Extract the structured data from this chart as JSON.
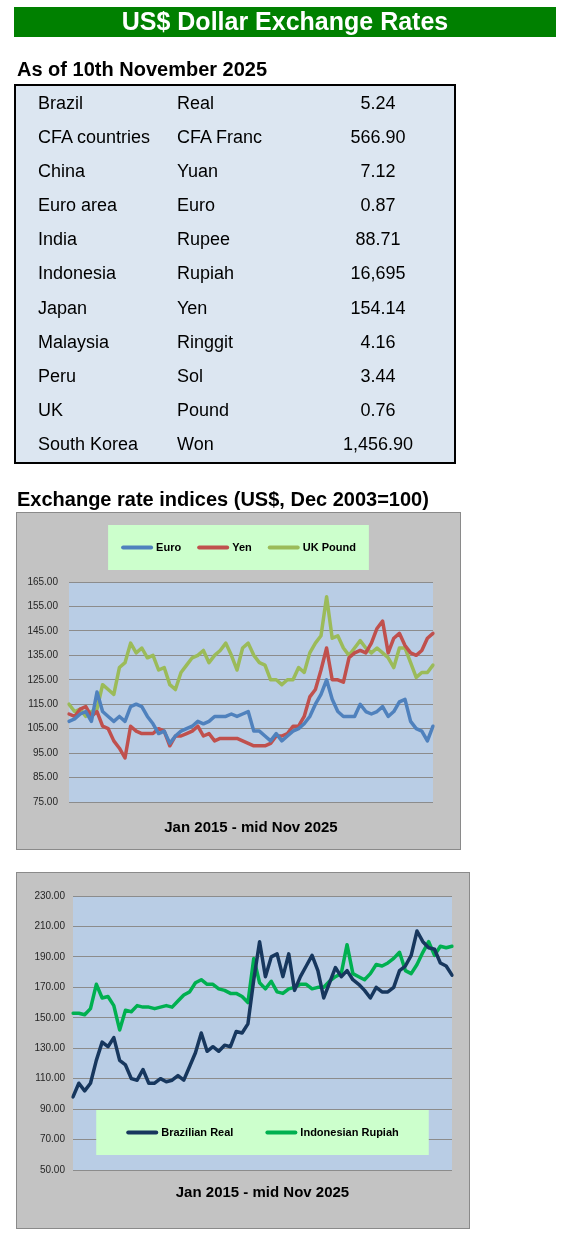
{
  "chart_data": [
    {
      "type": "other",
      "title": "US$ Dollar Exchange Rates",
      "subtitle": "As of 10th November 2025",
      "annotations": [
        "Brazil",
        "Real",
        "5.24",
        "CFA countries",
        "CFA Franc",
        "566.90",
        "China",
        "Yuan",
        "7.12",
        "Euro area",
        "Euro",
        "0.87",
        "India",
        "Rupee",
        "88.71",
        "Indonesia",
        "Rupiah",
        "16,695",
        "Japan",
        "Yen",
        "154.14",
        "Malaysia",
        "Ringgit",
        "4.16",
        "Peru",
        "Sol",
        "3.44",
        "UK",
        "Pound",
        "0.76",
        "South Korea",
        "Won",
        "1,456.90"
      ]
    },
    {
      "type": "line",
      "title": "Exchange rate indices (US$, Dec 2003=100)",
      "xlabel": "Jan 2015 - mid Nov 2025",
      "categories": [
        null,
        null,
        null,
        null,
        null,
        null,
        null,
        null,
        null,
        null,
        null,
        null,
        null,
        null,
        null,
        null,
        null,
        null,
        null,
        null,
        null,
        null,
        null,
        null,
        null,
        null,
        null,
        null,
        null,
        null,
        null,
        null,
        null,
        null,
        null,
        null,
        null,
        null,
        null,
        null,
        null,
        null,
        null,
        null,
        null,
        null,
        null,
        null,
        null,
        null,
        null,
        null,
        null,
        null,
        null,
        null,
        null,
        null,
        null,
        null,
        null,
        null,
        null,
        null,
        null,
        null
      ],
      "series": [
        {
          "name": "Euro",
          "color": "#4f81bd",
          "values": [
            108,
            109,
            111,
            112,
            108,
            120,
            112,
            110,
            108,
            110,
            108,
            114,
            115,
            114,
            110,
            107,
            103,
            104,
            99,
            102,
            104,
            105,
            106,
            108,
            107,
            108,
            110,
            110,
            110,
            111,
            110,
            111,
            112,
            104,
            104,
            102,
            100,
            103,
            100,
            102,
            104,
            105,
            107,
            110,
            115,
            119,
            125,
            117,
            112,
            110,
            110,
            110,
            115,
            112,
            111,
            112,
            114,
            110,
            112,
            116,
            117,
            108,
            105,
            104,
            100,
            106
          ]
        },
        {
          "name": "Yen",
          "color": "#c0504d",
          "values": [
            111,
            110,
            113,
            114,
            110,
            112,
            106,
            105,
            100,
            97,
            93,
            106,
            104,
            103,
            103,
            103,
            105,
            104,
            98,
            102,
            102,
            103,
            104,
            106,
            102,
            103,
            100,
            101,
            101,
            101,
            101,
            100,
            99,
            98,
            98,
            98,
            99,
            102,
            102,
            103,
            106,
            106,
            110,
            118,
            121,
            129,
            138,
            125,
            125,
            124,
            134,
            136,
            137,
            136,
            140,
            146,
            149,
            136,
            142,
            144,
            139,
            136,
            135,
            137,
            142,
            144
          ]
        },
        {
          "name": "UK Pound",
          "color": "#9bbb59",
          "values": [
            115,
            112,
            113,
            110,
            112,
            113,
            123,
            121,
            119,
            130,
            132,
            140,
            136,
            138,
            134,
            135,
            129,
            130,
            123,
            121,
            128,
            131,
            134,
            135,
            137,
            132,
            135,
            137,
            140,
            135,
            129,
            138,
            140,
            135,
            132,
            131,
            125,
            125,
            123,
            125,
            125,
            130,
            128,
            136,
            140,
            143,
            159,
            142,
            143,
            138,
            135,
            138,
            141,
            138,
            136,
            138,
            136,
            134,
            130,
            138,
            138,
            132,
            126,
            128,
            128,
            131
          ]
        }
      ],
      "ylim": [
        75,
        165
      ],
      "yticks": [
        {
          "value": 75,
          "label": "75.00"
        },
        {
          "value": 85,
          "label": "85.00"
        },
        {
          "value": 95,
          "label": "95.00"
        },
        {
          "value": 105,
          "label": "105.00"
        },
        {
          "value": 115,
          "label": "115.00"
        },
        {
          "value": 125,
          "label": "125.00"
        },
        {
          "value": 135,
          "label": "135.00"
        },
        {
          "value": 145,
          "label": "145.00"
        },
        {
          "value": 155,
          "label": "155.00"
        },
        {
          "value": 165,
          "label": "165.00"
        }
      ],
      "grid": "y",
      "legend": "top",
      "tick_labels": "y",
      "marker": "none",
      "line_style": "solid"
    },
    {
      "type": "line",
      "xlabel": "Jan 2015 - mid Nov 2025",
      "categories": [
        null,
        null,
        null,
        null,
        null,
        null,
        null,
        null,
        null,
        null,
        null,
        null,
        null,
        null,
        null,
        null,
        null,
        null,
        null,
        null,
        null,
        null,
        null,
        null,
        null,
        null,
        null,
        null,
        null,
        null,
        null,
        null,
        null,
        null,
        null,
        null,
        null,
        null,
        null,
        null,
        null,
        null,
        null,
        null,
        null,
        null,
        null,
        null,
        null,
        null,
        null,
        null,
        null,
        null,
        null,
        null,
        null,
        null,
        null,
        null,
        null,
        null,
        null,
        null,
        null,
        null
      ],
      "series": [
        {
          "name": "Brazilian Real",
          "color": "#17375e",
          "values": [
            98,
            107,
            102,
            107,
            122,
            134,
            131,
            137,
            122,
            119,
            110,
            109,
            116,
            107,
            107,
            110,
            108,
            109,
            112,
            109,
            118,
            127,
            140,
            128,
            131,
            128,
            132,
            131,
            141,
            140,
            146,
            175,
            200,
            177,
            190,
            192,
            177,
            192,
            168,
            177,
            184,
            191,
            181,
            163,
            173,
            183,
            177,
            181,
            175,
            172,
            168,
            163,
            170,
            167,
            167,
            170,
            181,
            184,
            191,
            207,
            200,
            196,
            195,
            186,
            184,
            178
          ]
        },
        {
          "name": "Indonesian Rupiah",
          "color": "#00b050",
          "values": [
            153,
            153,
            152,
            156,
            172,
            163,
            164,
            158,
            142,
            155,
            154,
            158,
            157,
            157,
            156,
            157,
            158,
            157,
            161,
            165,
            167,
            173,
            175,
            172,
            172,
            169,
            168,
            166,
            166,
            164,
            160,
            189,
            173,
            169,
            174,
            167,
            166,
            169,
            170,
            172,
            172,
            169,
            170,
            170,
            174,
            177,
            179,
            198,
            179,
            177,
            175,
            179,
            185,
            184,
            186,
            189,
            193,
            181,
            179,
            185,
            193,
            200,
            191,
            197,
            196,
            197
          ]
        }
      ],
      "ylim": [
        50,
        230
      ],
      "yticks": [
        {
          "value": 50,
          "label": "50.00"
        },
        {
          "value": 70,
          "label": "70.00"
        },
        {
          "value": 90,
          "label": "90.00"
        },
        {
          "value": 110,
          "label": "110.00"
        },
        {
          "value": 130,
          "label": "130.00"
        },
        {
          "value": 150,
          "label": "150.00"
        },
        {
          "value": 170,
          "label": "170.00"
        },
        {
          "value": 190,
          "label": "190.00"
        },
        {
          "value": 210,
          "label": "210.00"
        },
        {
          "value": 230,
          "label": "230.00"
        }
      ],
      "grid": "y",
      "legend": "bottom",
      "tick_labels": "y",
      "marker": "none",
      "line_style": "solid"
    }
  ]
}
